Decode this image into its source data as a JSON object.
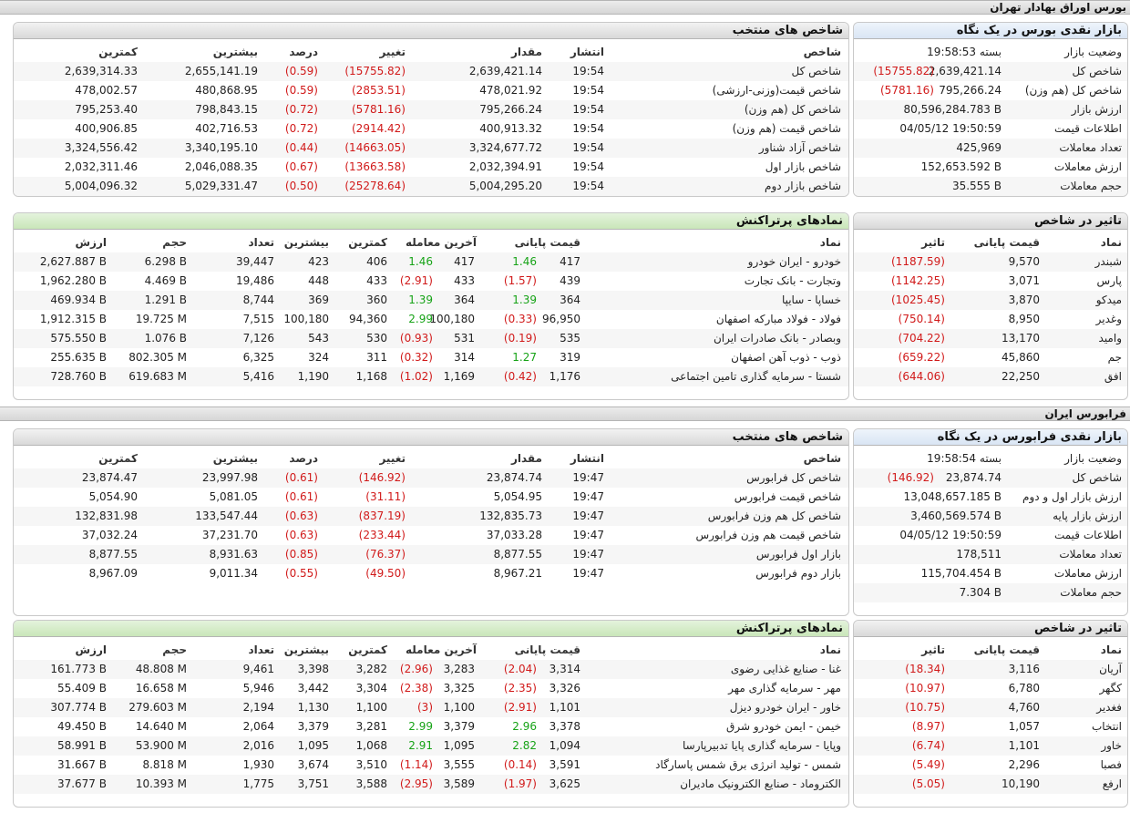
{
  "tehran": {
    "section_title": "بورس اوراق بهادار تهران",
    "overview": {
      "title": "بازار نقدی بورس در یک نگاه",
      "rows": [
        {
          "label": "وضعیت بازار",
          "value": "بسته 19:58:53",
          "change": ""
        },
        {
          "label": "شاخص کل",
          "value": "2,639,421.14",
          "change": "(15755.82)"
        },
        {
          "label": "شاخص کل (هم وزن)",
          "value": "795,266.24",
          "change": "(5781.16)"
        },
        {
          "label": "ارزش بازار",
          "value": "80,596,284.783 B",
          "change": ""
        },
        {
          "label": "اطلاعات قیمت",
          "value": "04/05/12 19:50:59",
          "change": ""
        },
        {
          "label": "تعداد معاملات",
          "value": "425,969",
          "change": ""
        },
        {
          "label": "ارزش معاملات",
          "value": "152,653.592 B",
          "change": ""
        },
        {
          "label": "حجم معاملات",
          "value": "35.555 B",
          "change": ""
        }
      ]
    },
    "indices": {
      "title": "شاخص های منتخب",
      "headers": {
        "name": "شاخص",
        "time": "انتشار",
        "value": "مقدار",
        "change": "تغییر",
        "percent": "درصد",
        "high": "بیشترین",
        "low": "کمترین"
      },
      "rows": [
        {
          "name": "شاخص کل",
          "time": "19:54",
          "value": "2,639,421.14",
          "change": "(15755.82)",
          "percent": "(0.59)",
          "high": "2,655,141.19",
          "low": "2,639,314.33"
        },
        {
          "name": "شاخص قیمت(وزنی-ارزشی)",
          "time": "19:54",
          "value": "478,021.92",
          "change": "(2853.51)",
          "percent": "(0.59)",
          "high": "480,868.95",
          "low": "478,002.57"
        },
        {
          "name": "شاخص کل (هم وزن)",
          "time": "19:54",
          "value": "795,266.24",
          "change": "(5781.16)",
          "percent": "(0.72)",
          "high": "798,843.15",
          "low": "795,253.40"
        },
        {
          "name": "شاخص قیمت (هم وزن)",
          "time": "19:54",
          "value": "400,913.32",
          "change": "(2914.42)",
          "percent": "(0.72)",
          "high": "402,716.53",
          "low": "400,906.85"
        },
        {
          "name": "شاخص آزاد شناور",
          "time": "19:54",
          "value": "3,324,677.72",
          "change": "(14663.05)",
          "percent": "(0.44)",
          "high": "3,340,195.10",
          "low": "3,324,556.42"
        },
        {
          "name": "شاخص بازار اول",
          "time": "19:54",
          "value": "2,032,394.91",
          "change": "(13663.58)",
          "percent": "(0.67)",
          "high": "2,046,088.35",
          "low": "2,032,311.46"
        },
        {
          "name": "شاخص بازار دوم",
          "time": "19:54",
          "value": "5,004,295.20",
          "change": "(25278.64)",
          "percent": "(0.50)",
          "high": "5,029,331.47",
          "low": "5,004,096.32"
        }
      ]
    },
    "impact": {
      "title": "تاثیر در شاخص",
      "headers": {
        "symbol": "نماد",
        "close": "قیمت پایانی",
        "effect": "تاثیر"
      },
      "rows": [
        {
          "symbol": "شبندر",
          "close": "9,570",
          "effect": "(1187.59)"
        },
        {
          "symbol": "پارس",
          "close": "3,071",
          "effect": "(1142.25)"
        },
        {
          "symbol": "میدکو",
          "close": "3,870",
          "effect": "(1025.45)"
        },
        {
          "symbol": "وغدیر",
          "close": "8,950",
          "effect": "(750.14)"
        },
        {
          "symbol": "وامید",
          "close": "13,170",
          "effect": "(704.22)"
        },
        {
          "symbol": "جم",
          "close": "45,860",
          "effect": "(659.22)"
        },
        {
          "symbol": "افق",
          "close": "22,250",
          "effect": "(644.06)"
        }
      ]
    },
    "active": {
      "title": "نمادهای پرتراکنش",
      "headers": {
        "symbol": "نماد",
        "close": "قیمت پایانی",
        "last": "آخرین معامله",
        "low": "کمترین",
        "high": "بیشترین",
        "count": "تعداد",
        "volume": "حجم",
        "value": "ارزش"
      },
      "rows": [
        {
          "symbol": "خودرو - ایران خودرو",
          "close": "417",
          "close_chg": "1.46",
          "last": "417",
          "last_chg": "1.46",
          "low": "406",
          "high": "423",
          "count": "39,447",
          "volume": "6.298 B",
          "value": "2,627.887 B"
        },
        {
          "symbol": "وتجارت - بانک تجارت",
          "close": "439",
          "close_chg": "(1.57)",
          "last": "433",
          "last_chg": "(2.91)",
          "low": "433",
          "high": "448",
          "count": "19,486",
          "volume": "4.469 B",
          "value": "1,962.280 B"
        },
        {
          "symbol": "خساپا - سایپا",
          "close": "364",
          "close_chg": "1.39",
          "last": "364",
          "last_chg": "1.39",
          "low": "360",
          "high": "369",
          "count": "8,744",
          "volume": "1.291 B",
          "value": "469.934 B"
        },
        {
          "symbol": "فولاد - فولاد مبارکه اصفهان",
          "close": "96,950",
          "close_chg": "(0.33)",
          "last": "100,180",
          "last_chg": "2.99",
          "low": "94,360",
          "high": "100,180",
          "count": "7,515",
          "volume": "19.725 M",
          "value": "1,912.315 B"
        },
        {
          "symbol": "وبصادر - بانک صادرات ایران",
          "close": "535",
          "close_chg": "(0.19)",
          "last": "531",
          "last_chg": "(0.93)",
          "low": "530",
          "high": "543",
          "count": "7,126",
          "volume": "1.076 B",
          "value": "575.550 B"
        },
        {
          "symbol": "ذوب - ذوب آهن اصفهان",
          "close": "319",
          "close_chg": "1.27",
          "last": "314",
          "last_chg": "(0.32)",
          "low": "311",
          "high": "324",
          "count": "6,325",
          "volume": "802.305 M",
          "value": "255.635 B"
        },
        {
          "symbol": "شستا - سرمایه گذاری تامین اجتماعی",
          "close": "1,176",
          "close_chg": "(0.42)",
          "last": "1,169",
          "last_chg": "(1.02)",
          "low": "1,168",
          "high": "1,190",
          "count": "5,416",
          "volume": "619.683 M",
          "value": "728.760 B"
        }
      ]
    }
  },
  "farabourse": {
    "section_title": "فرابورس ایران",
    "overview": {
      "title": "بازار نقدی فرابورس در یک نگاه",
      "rows": [
        {
          "label": "وضعیت بازار",
          "value": "بسته 19:58:54",
          "change": ""
        },
        {
          "label": "شاخص کل",
          "value": "23,874.74",
          "change": "(146.92)"
        },
        {
          "label": "ارزش بازار اول و دوم",
          "value": "13,048,657.185 B",
          "change": ""
        },
        {
          "label": "ارزش بازار پایه",
          "value": "3,460,569.574 B",
          "change": ""
        },
        {
          "label": "اطلاعات قیمت",
          "value": "04/05/12 19:50:59",
          "change": ""
        },
        {
          "label": "تعداد معاملات",
          "value": "178,511",
          "change": ""
        },
        {
          "label": "ارزش معاملات",
          "value": "115,704.454 B",
          "change": ""
        },
        {
          "label": "حجم معاملات",
          "value": "7.304 B",
          "change": ""
        }
      ]
    },
    "indices": {
      "title": "شاخص های منتخب",
      "headers": {
        "name": "شاخص",
        "time": "انتشار",
        "value": "مقدار",
        "change": "تغییر",
        "percent": "درصد",
        "high": "بیشترین",
        "low": "کمترین"
      },
      "rows": [
        {
          "name": "شاخص کل فرابورس",
          "time": "19:47",
          "value": "23,874.74",
          "change": "(146.92)",
          "percent": "(0.61)",
          "high": "23,997.98",
          "low": "23,874.47"
        },
        {
          "name": "شاخص قیمت فرابورس",
          "time": "19:47",
          "value": "5,054.95",
          "change": "(31.11)",
          "percent": "(0.61)",
          "high": "5,081.05",
          "low": "5,054.90"
        },
        {
          "name": "شاخص کل هم وزن فرابورس",
          "time": "19:47",
          "value": "132,835.73",
          "change": "(837.19)",
          "percent": "(0.63)",
          "high": "133,547.44",
          "low": "132,831.98"
        },
        {
          "name": "شاخص قیمت هم وزن فرابورس",
          "time": "19:47",
          "value": "37,033.28",
          "change": "(233.44)",
          "percent": "(0.63)",
          "high": "37,231.70",
          "low": "37,032.24"
        },
        {
          "name": "بازار اول فرابورس",
          "time": "19:47",
          "value": "8,877.55",
          "change": "(76.37)",
          "percent": "(0.85)",
          "high": "8,931.63",
          "low": "8,877.55"
        },
        {
          "name": "بازار دوم فرابورس",
          "time": "19:47",
          "value": "8,967.21",
          "change": "(49.50)",
          "percent": "(0.55)",
          "high": "9,011.34",
          "low": "8,967.09"
        }
      ]
    },
    "impact": {
      "title": "تاثیر در شاخص",
      "headers": {
        "symbol": "نماد",
        "close": "قیمت پایانی",
        "effect": "تاثیر"
      },
      "rows": [
        {
          "symbol": "آریان",
          "close": "3,116",
          "effect": "(18.34)"
        },
        {
          "symbol": "کگهر",
          "close": "6,780",
          "effect": "(10.97)"
        },
        {
          "symbol": "فغدیر",
          "close": "4,760",
          "effect": "(10.75)"
        },
        {
          "symbol": "انتخاب",
          "close": "1,057",
          "effect": "(8.97)"
        },
        {
          "symbol": "خاور",
          "close": "1,101",
          "effect": "(6.74)"
        },
        {
          "symbol": "فصبا",
          "close": "2,296",
          "effect": "(5.49)"
        },
        {
          "symbol": "ارفع",
          "close": "10,190",
          "effect": "(5.05)"
        }
      ]
    },
    "active": {
      "title": "نمادهای پرتراکنش",
      "headers": {
        "symbol": "نماد",
        "close": "قیمت پایانی",
        "last": "آخرین معامله",
        "low": "کمترین",
        "high": "بیشترین",
        "count": "تعداد",
        "volume": "حجم",
        "value": "ارزش"
      },
      "rows": [
        {
          "symbol": "غنا - صنایع غذایی رضوی",
          "close": "3,314",
          "close_chg": "(2.04)",
          "last": "3,283",
          "last_chg": "(2.96)",
          "low": "3,282",
          "high": "3,398",
          "count": "9,461",
          "volume": "48.808 M",
          "value": "161.773 B"
        },
        {
          "symbol": "مهر - سرمایه گذاری مهر",
          "close": "3,326",
          "close_chg": "(2.35)",
          "last": "3,325",
          "last_chg": "(2.38)",
          "low": "3,304",
          "high": "3,442",
          "count": "5,946",
          "volume": "16.658 M",
          "value": "55.409 B"
        },
        {
          "symbol": "خاور - ایران خودرو دیزل",
          "close": "1,101",
          "close_chg": "(2.91)",
          "last": "1,100",
          "last_chg": "(3)",
          "low": "1,100",
          "high": "1,130",
          "count": "2,194",
          "volume": "279.603 M",
          "value": "307.774 B"
        },
        {
          "symbol": "خیمن - ایمن خودرو شرق",
          "close": "3,378",
          "close_chg": "2.96",
          "last": "3,379",
          "last_chg": "2.99",
          "low": "3,281",
          "high": "3,379",
          "count": "2,064",
          "volume": "14.640 M",
          "value": "49.450 B"
        },
        {
          "symbol": "وپایا - سرمایه گذاری پایا تدبیرپارسا",
          "close": "1,094",
          "close_chg": "2.82",
          "last": "1,095",
          "last_chg": "2.91",
          "low": "1,068",
          "high": "1,095",
          "count": "2,016",
          "volume": "53.900 M",
          "value": "58.991 B"
        },
        {
          "symbol": "شمس - تولید انرژی برق شمس پاسارگاد",
          "close": "3,591",
          "close_chg": "(0.14)",
          "last": "3,555",
          "last_chg": "(1.14)",
          "low": "3,510",
          "high": "3,674",
          "count": "1,930",
          "volume": "8.818 M",
          "value": "31.667 B"
        },
        {
          "symbol": "الکتروماد - صنایع الکترونیک مادیران",
          "close": "3,625",
          "close_chg": "(1.97)",
          "last": "3,589",
          "last_chg": "(2.95)",
          "low": "3,588",
          "high": "3,751",
          "count": "1,775",
          "volume": "10.393 M",
          "value": "37.677 B"
        }
      ]
    }
  },
  "colors": {
    "negative": "#d11a1a",
    "positive": "#17a317",
    "section_bar": "#dcdcdc",
    "overview_header": "#d9e5f4",
    "active_header": "#c9e6b9"
  }
}
